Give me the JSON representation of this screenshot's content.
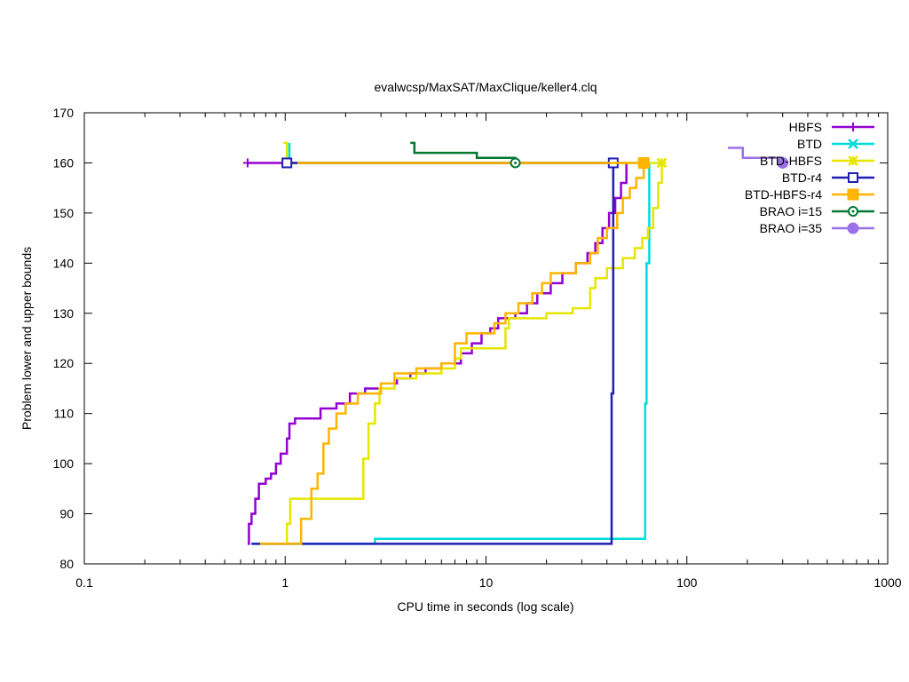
{
  "chart_data": {
    "type": "line",
    "title": "evalwcsp/MaxSAT/MaxClique/keller4.clq",
    "xlabel": "CPU time in seconds (log scale)",
    "ylabel": "Problem lower and upper bounds",
    "xscale": "log",
    "xlim": [
      0.1,
      1000
    ],
    "ylim": [
      80,
      170
    ],
    "xticks": [
      0.1,
      1,
      10,
      100,
      1000
    ],
    "xtick_labels": [
      "0.1",
      "1",
      "10",
      "100",
      "1000"
    ],
    "yticks": [
      80,
      90,
      100,
      110,
      120,
      130,
      140,
      150,
      160,
      170
    ],
    "ytick_labels": [
      "80",
      "90",
      "100",
      "110",
      "120",
      "130",
      "140",
      "150",
      "160",
      "170"
    ],
    "grid": false,
    "legend_position": "top-right",
    "series": [
      {
        "name": "HBFS",
        "color": "#9400d3",
        "marker": "plus",
        "upper": [
          [
            0.65,
            160
          ],
          [
            50,
            160
          ]
        ],
        "lower": [
          [
            0.65,
            84
          ],
          [
            0.66,
            88
          ],
          [
            0.68,
            90
          ],
          [
            0.71,
            93
          ],
          [
            0.74,
            96
          ],
          [
            0.8,
            97
          ],
          [
            0.85,
            98
          ],
          [
            0.9,
            100
          ],
          [
            0.95,
            102
          ],
          [
            1.02,
            105
          ],
          [
            1.05,
            108
          ],
          [
            1.12,
            109
          ],
          [
            1.5,
            111
          ],
          [
            1.8,
            112
          ],
          [
            2.1,
            114
          ],
          [
            2.5,
            115
          ],
          [
            3.0,
            116
          ],
          [
            3.6,
            117
          ],
          [
            4.2,
            118
          ],
          [
            5.0,
            119
          ],
          [
            6.0,
            120
          ],
          [
            7.5,
            122
          ],
          [
            8.5,
            124
          ],
          [
            9.5,
            126
          ],
          [
            10.5,
            127
          ],
          [
            11.5,
            129
          ],
          [
            14,
            130
          ],
          [
            16,
            132
          ],
          [
            18,
            134
          ],
          [
            21,
            136
          ],
          [
            24,
            138
          ],
          [
            28,
            140
          ],
          [
            32,
            142
          ],
          [
            35,
            144
          ],
          [
            38,
            147
          ],
          [
            41,
            150
          ],
          [
            44,
            153
          ],
          [
            47,
            156
          ],
          [
            50,
            160
          ]
        ],
        "marker_points": [
          [
            0.65,
            160
          ]
        ]
      },
      {
        "name": "BTD",
        "color": "#00dcdc",
        "marker": "cross",
        "upper": [
          [
            1.05,
            164
          ],
          [
            1.05,
            160
          ],
          [
            62,
            160
          ]
        ],
        "lower": [
          [
            0.68,
            84
          ],
          [
            2.8,
            84
          ],
          [
            2.8,
            85
          ],
          [
            62,
            85
          ],
          [
            62,
            112
          ],
          [
            63,
            140
          ],
          [
            65,
            160
          ]
        ],
        "marker_points": []
      },
      {
        "name": "BTD-HBFS",
        "color": "#e6e600",
        "marker": "star",
        "upper": [
          [
            0.98,
            164
          ],
          [
            1.02,
            161
          ],
          [
            1.02,
            160
          ],
          [
            75,
            160
          ]
        ],
        "lower": [
          [
            0.72,
            84
          ],
          [
            1.0,
            84
          ],
          [
            1.02,
            88
          ],
          [
            1.06,
            93
          ],
          [
            2.4,
            93
          ],
          [
            2.45,
            101
          ],
          [
            2.6,
            108
          ],
          [
            2.8,
            112
          ],
          [
            2.95,
            115
          ],
          [
            3.5,
            117
          ],
          [
            4.5,
            118
          ],
          [
            6.0,
            119
          ],
          [
            7.0,
            121
          ],
          [
            7.5,
            123
          ],
          [
            12,
            123
          ],
          [
            12.5,
            127
          ],
          [
            13,
            129
          ],
          [
            20,
            130
          ],
          [
            27,
            131
          ],
          [
            33,
            135
          ],
          [
            35,
            137
          ],
          [
            40,
            139
          ],
          [
            48,
            141
          ],
          [
            55,
            143
          ],
          [
            60,
            145
          ],
          [
            64,
            147
          ],
          [
            68,
            151
          ],
          [
            72,
            156
          ],
          [
            75,
            160
          ]
        ],
        "marker_points": [
          [
            75,
            160
          ]
        ]
      },
      {
        "name": "BTD-r4",
        "color": "#1f1fb4",
        "marker": "square-open",
        "upper": [
          [
            1.02,
            160
          ],
          [
            43,
            160
          ]
        ],
        "lower": [
          [
            0.68,
            84
          ],
          [
            42,
            84
          ],
          [
            42.2,
            114
          ],
          [
            43,
            130
          ],
          [
            43,
            160
          ]
        ],
        "marker_points": [
          [
            1.02,
            160
          ],
          [
            43,
            160
          ]
        ]
      },
      {
        "name": "BTD-HBFS-r4",
        "color": "#ffb400",
        "marker": "square-filled",
        "upper": [
          [
            1.15,
            160
          ],
          [
            61,
            160
          ]
        ],
        "lower": [
          [
            0.75,
            84
          ],
          [
            1.15,
            84
          ],
          [
            1.2,
            89
          ],
          [
            1.35,
            95
          ],
          [
            1.45,
            98
          ],
          [
            1.55,
            104
          ],
          [
            1.65,
            107
          ],
          [
            1.8,
            110
          ],
          [
            2.0,
            112
          ],
          [
            2.3,
            114
          ],
          [
            3.0,
            116
          ],
          [
            3.5,
            118
          ],
          [
            4.5,
            119
          ],
          [
            6.0,
            120
          ],
          [
            7.0,
            124
          ],
          [
            8.0,
            126
          ],
          [
            11,
            128
          ],
          [
            12.5,
            130
          ],
          [
            14.5,
            132
          ],
          [
            17,
            134
          ],
          [
            19,
            136
          ],
          [
            21,
            138
          ],
          [
            28,
            140
          ],
          [
            33,
            142
          ],
          [
            36,
            145
          ],
          [
            40,
            147
          ],
          [
            45,
            150
          ],
          [
            48,
            153
          ],
          [
            52,
            155
          ],
          [
            56,
            157
          ],
          [
            61,
            160
          ]
        ],
        "marker_points": [
          [
            61,
            160
          ]
        ]
      },
      {
        "name": "BRAO i=15",
        "color": "#007832",
        "marker": "circle-open",
        "upper": [
          [
            4.2,
            164
          ],
          [
            4.4,
            162
          ],
          [
            9,
            162
          ],
          [
            9,
            161
          ],
          [
            14,
            161
          ],
          [
            14,
            160
          ]
        ],
        "lower": [],
        "marker_points": [
          [
            14,
            160
          ]
        ]
      },
      {
        "name": "BRAO i=35",
        "color": "#9a70e8",
        "marker": "circle-filled",
        "upper": [
          [
            160,
            163
          ],
          [
            190,
            163
          ],
          [
            190,
            161
          ],
          [
            300,
            161
          ],
          [
            300,
            160
          ]
        ],
        "lower": [],
        "marker_points": [
          [
            300,
            160
          ]
        ]
      }
    ]
  }
}
